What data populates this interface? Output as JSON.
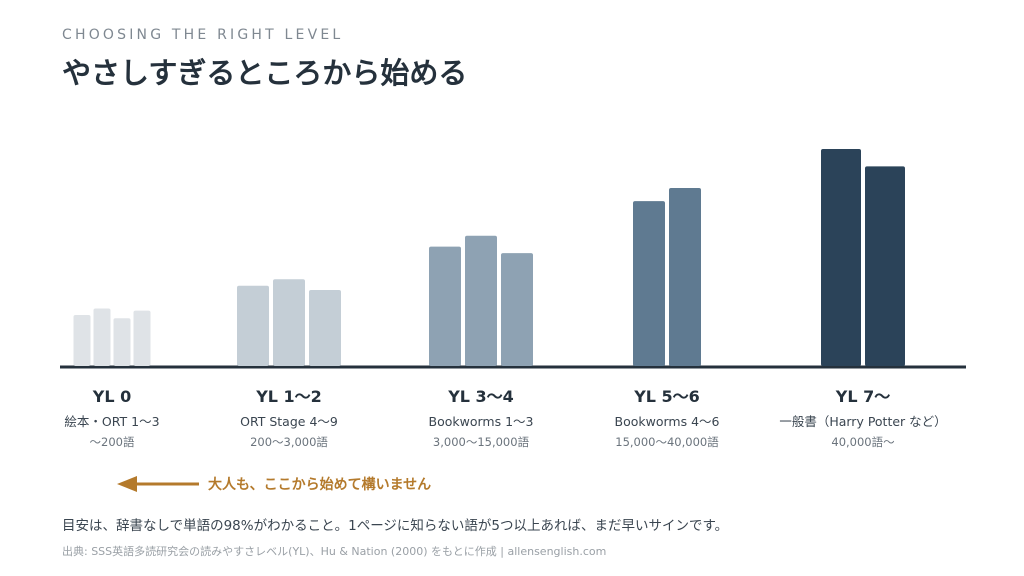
{
  "header": {
    "kicker": "CHOOSING THE RIGHT LEVEL",
    "title": "やさしすぎるところから始める"
  },
  "levels": [
    {
      "name": "YL 0",
      "example": "絵本・ORT 1〜3",
      "words": "〜200語",
      "color": "#dfe3e7",
      "bars": [
        0.235,
        0.265,
        0.22,
        0.255
      ]
    },
    {
      "name": "YL 1〜2",
      "example": "ORT Stage 4〜9",
      "words": "200〜3,000語",
      "color": "#c4ced6",
      "bars": [
        0.37,
        0.4,
        0.35
      ]
    },
    {
      "name": "YL 3〜4",
      "example": "Bookworms 1〜3",
      "words": "3,000〜15,000語",
      "color": "#8ea2b3",
      "bars": [
        0.55,
        0.6,
        0.52
      ]
    },
    {
      "name": "YL 5〜6",
      "example": "Bookworms 4〜6",
      "words": "15,000〜40,000語",
      "color": "#5f7a91",
      "bars": [
        0.76,
        0.82
      ]
    },
    {
      "name": "YL 7〜",
      "example": "一般書（Harry Potter など）",
      "words": "40,000語〜",
      "color": "#2b4359",
      "bars": [
        1.0,
        0.92
      ]
    }
  ],
  "callout": {
    "text": "大人も、ここから始めて構いません",
    "color": "#b47a2c"
  },
  "note": "目安は、辞書なしで単語の98%がわかること。1ページに知らない語が5つ以上あれば、まだ早いサインです。",
  "source": "出典: SSS英語多読研究会の読みやすさレベル(YL)、Hu & Nation (2000) をもとに作成 | allensenglish.com",
  "colors": {
    "baseline": "#25313c",
    "title": "#25313c"
  }
}
